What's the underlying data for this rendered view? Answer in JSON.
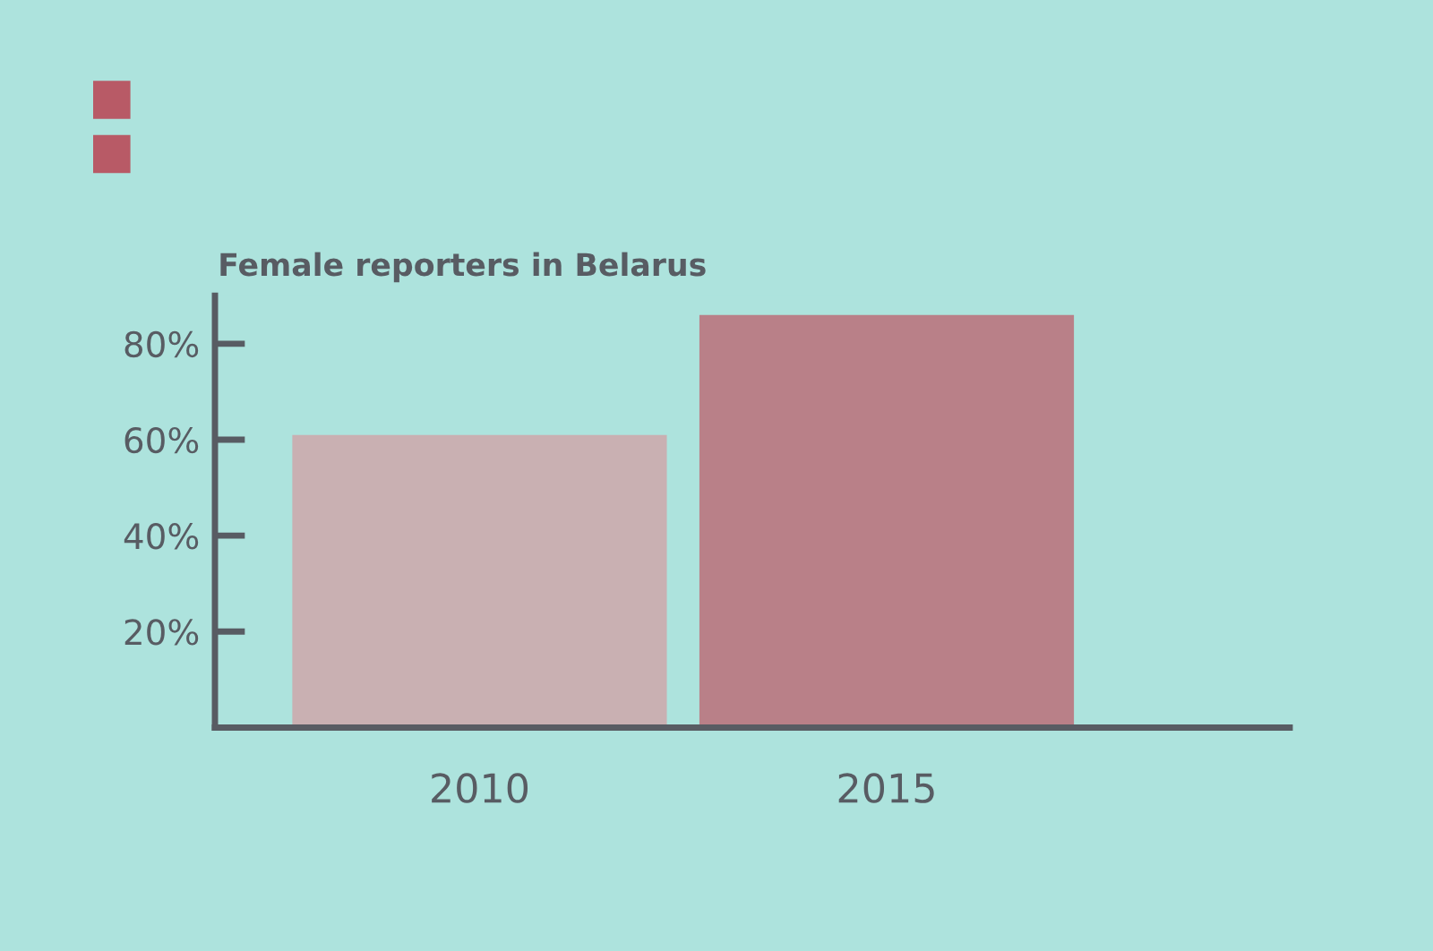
{
  "chart_data": {
    "type": "bar",
    "title": "Female reporters in Belarus",
    "categories": [
      "2010",
      "2015"
    ],
    "values": [
      61,
      86
    ],
    "colors": [
      "#c9b0b2",
      "#b98088"
    ],
    "ylim": [
      0,
      90
    ],
    "yticks": [
      {
        "value": 20,
        "label": "20%"
      },
      {
        "value": 40,
        "label": "40%"
      },
      {
        "value": 60,
        "label": "60%"
      },
      {
        "value": 80,
        "label": "80%"
      }
    ],
    "grid": false,
    "legend": false
  }
}
